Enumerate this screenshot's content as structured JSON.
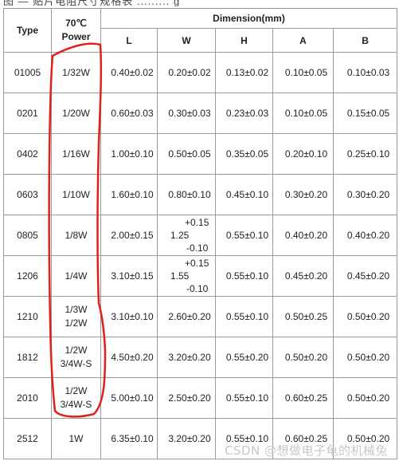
{
  "header": {
    "type_label": "Type",
    "power_line1": "70℃",
    "power_line2": "Power",
    "dimension_label": "Dimension(mm)",
    "dims": [
      "L",
      "W",
      "H",
      "A",
      "B"
    ]
  },
  "rows": [
    {
      "type": "01005",
      "power": [
        "1/32W"
      ],
      "L": "0.40±0.02",
      "W": [
        "0.20±0.02"
      ],
      "H": "0.13±0.02",
      "A": "0.10±0.05",
      "B": "0.10±0.03"
    },
    {
      "type": "0201",
      "power": [
        "1/20W"
      ],
      "L": "0.60±0.03",
      "W": [
        "0.30±0.03"
      ],
      "H": "0.23±0.03",
      "A": "0.10±0.05",
      "B": "0.15±0.05"
    },
    {
      "type": "0402",
      "power": [
        "1/16W"
      ],
      "L": "1.00±0.10",
      "W": [
        "0.50±0.05"
      ],
      "H": "0.35±0.05",
      "A": "0.20±0.10",
      "B": "0.25±0.10"
    },
    {
      "type": "0603",
      "power": [
        "1/10W"
      ],
      "L": "1.60±0.10",
      "W": [
        "0.80±0.10"
      ],
      "H": "0.45±0.10",
      "A": "0.30±0.20",
      "B": "0.30±0.20"
    },
    {
      "type": "0805",
      "power": [
        "1/8W"
      ],
      "L": "2.00±0.15",
      "W": [
        "+0.15",
        "1.25",
        "-0.10"
      ],
      "H": "0.55±0.10",
      "A": "0.40±0.20",
      "B": "0.40±0.20"
    },
    {
      "type": "1206",
      "power": [
        "1/4W"
      ],
      "L": "3.10±0.15",
      "W": [
        "+0.15",
        "1.55",
        "-0.10"
      ],
      "H": "0.55±0.10",
      "A": "0.45±0.20",
      "B": "0.45±0.20"
    },
    {
      "type": "1210",
      "power": [
        "1/3W",
        "1/2W"
      ],
      "L": "3.10±0.10",
      "W": [
        "2.60±0.20"
      ],
      "H": "0.55±0.10",
      "A": "0.50±0.25",
      "B": "0.50±0.20"
    },
    {
      "type": "1812",
      "power": [
        "1/2W",
        "3/4W-S"
      ],
      "L": "4.50±0.20",
      "W": [
        "3.20±0.20"
      ],
      "H": "0.55±0.20",
      "A": "0.50±0.20",
      "B": "0.50±0.20"
    },
    {
      "type": "2010",
      "power": [
        "1/2W",
        "3/4W-S"
      ],
      "L": "5.00±0.10",
      "W": [
        "2.50±0.20"
      ],
      "H": "0.55±0.10",
      "A": "0.60±0.25",
      "B": "0.50±0.20"
    },
    {
      "type": "2512",
      "power": [
        "1W"
      ],
      "L": "6.35±0.10",
      "W": [
        "3.20±0.20"
      ],
      "H": "0.55±0.10",
      "A": "0.60±0.25",
      "B": "0.50±0.20"
    }
  ],
  "annotation": {
    "color": "#e0201b"
  },
  "watermark": "CSDN @想做电子龟的机械兔"
}
